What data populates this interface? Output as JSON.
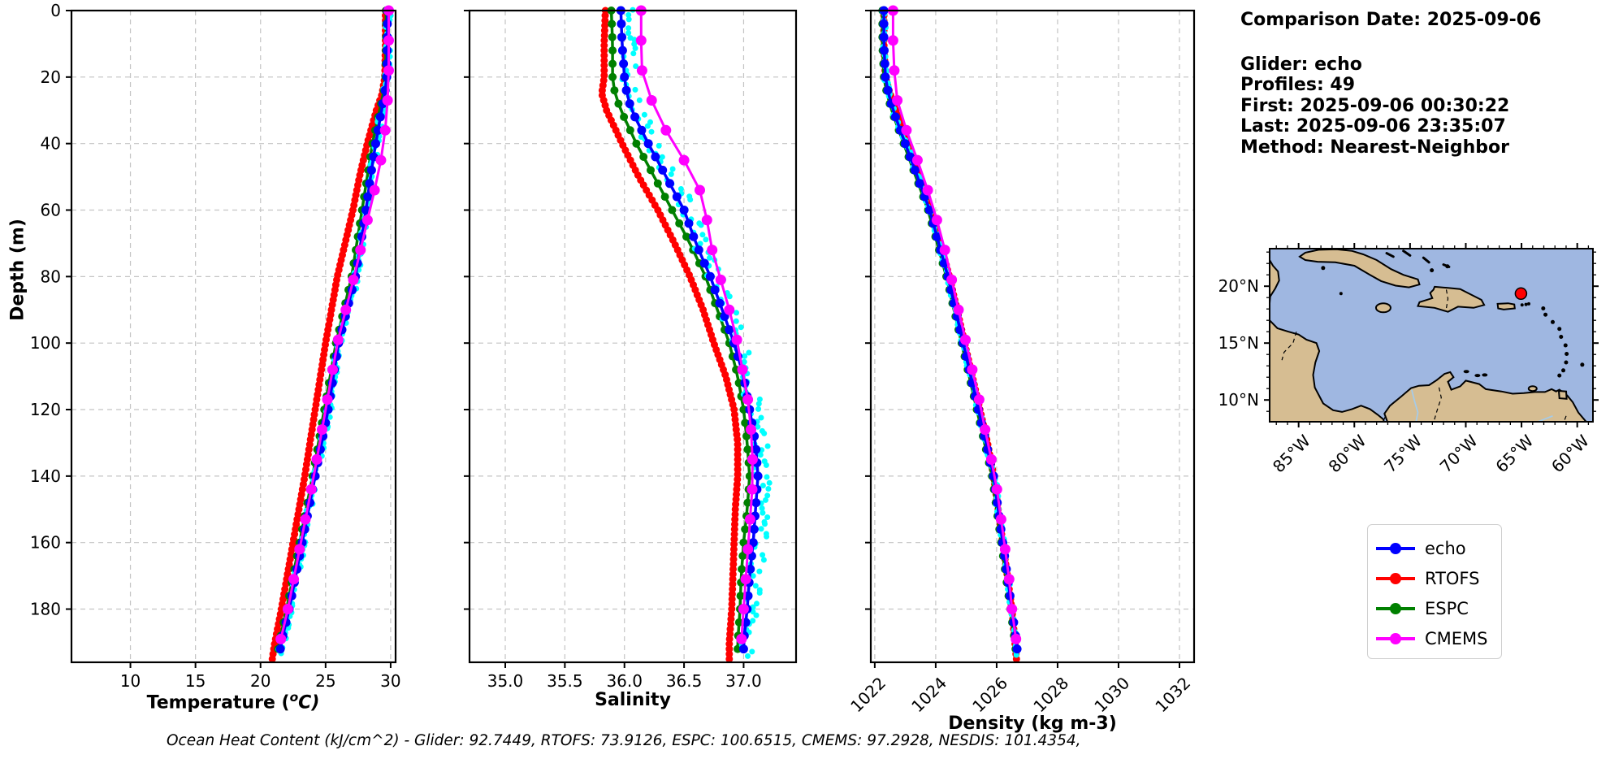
{
  "info_panel": {
    "comparison_date": "Comparison Date: 2025-09-06",
    "glider": "Glider: echo",
    "profiles": "Profiles: 49",
    "first": "First: 2025-09-06 00:30:22",
    "last": "Last: 2025-09-06 23:35:07",
    "method": "Method: Nearest-Neighbor"
  },
  "footer": {
    "ohc_line": "Ocean Heat Content (kJ/cm^2) - Glider: 92.7449,  RTOFS: 73.9126,  ESPC: 100.6515,  CMEMS: 97.2928,  NESDIS: 101.4354,"
  },
  "axis_labels": {
    "depth": "Depth (m)",
    "temp_prefix": "Temperature (",
    "temp_sup": "o",
    "temp_suffix": "C)",
    "salinity": "Salinity",
    "density": "Density (kg m-3)"
  },
  "legend": {
    "items": [
      {
        "label": "echo",
        "color": "#0000ff"
      },
      {
        "label": "RTOFS",
        "color": "#ff0000"
      },
      {
        "label": "ESPC",
        "color": "#008000"
      },
      {
        "label": "CMEMS",
        "color": "#ff00ff"
      }
    ]
  },
  "colors": {
    "glider_scatter": "#00ffff",
    "grid": "#c4c4c4",
    "spine": "#000000",
    "map_ocean": "#9fb7e1",
    "map_land": "#d6bd92",
    "map_coast": "#000000",
    "map_marker": "#ff0000"
  },
  "map": {
    "lat_labels": [
      "20°N",
      "15°N",
      "10°N"
    ],
    "lat_values": [
      20,
      15,
      10
    ],
    "lon_labels": [
      "85°W",
      "80°W",
      "75°W",
      "70°W",
      "65°W",
      "60°W"
    ],
    "lon_values": [
      85,
      80,
      75,
      70,
      65,
      60
    ],
    "marker": {
      "lon_w": 65.05,
      "lat_n": 19.35
    }
  },
  "depth_axis": {
    "ticks": [
      0,
      20,
      40,
      60,
      80,
      100,
      120,
      140,
      160,
      180
    ],
    "tick_labels": [
      "0",
      "20",
      "40",
      "60",
      "80",
      "100",
      "120",
      "140",
      "160",
      "180"
    ],
    "max": 196
  },
  "chart_data": [
    {
      "type": "line",
      "xlabel": "Temperature (°C)",
      "ylabel": "Depth (m)",
      "xlim": [
        5.47,
        30.38
      ],
      "ylim": [
        196,
        0
      ],
      "xticks": [
        10,
        15,
        20,
        25,
        30
      ],
      "xtick_labels": [
        "10",
        "15",
        "20",
        "25",
        "30"
      ],
      "xtick_rotation": 0,
      "grid": true,
      "depths": [
        0,
        10,
        20,
        25,
        30,
        40,
        50,
        60,
        70,
        80,
        90,
        100,
        110,
        120,
        130,
        140,
        150,
        160,
        170,
        180,
        190,
        195
      ],
      "series": [
        {
          "name": "echo",
          "color": "#0000ff",
          "values": [
            29.75,
            29.75,
            29.7,
            29.55,
            29.3,
            28.85,
            28.45,
            28.1,
            27.7,
            27.3,
            26.65,
            26.0,
            25.6,
            25.2,
            24.7,
            24.2,
            23.7,
            23.2,
            22.7,
            22.2,
            21.6,
            21.4
          ]
        },
        {
          "name": "RTOFS",
          "color": "#ff0000",
          "values": [
            29.6,
            29.6,
            29.55,
            29.35,
            28.9,
            28.2,
            27.6,
            27.1,
            26.5,
            25.9,
            25.45,
            25.0,
            24.6,
            24.2,
            23.8,
            23.4,
            22.95,
            22.5,
            22.05,
            21.6,
            21.1,
            20.9
          ]
        },
        {
          "name": "ESPC",
          "color": "#008000",
          "values": [
            29.65,
            29.65,
            29.6,
            29.45,
            29.15,
            28.6,
            28.2,
            27.8,
            27.4,
            27.0,
            26.4,
            25.8,
            25.35,
            24.9,
            24.45,
            24.0,
            23.5,
            23.0,
            22.5,
            22.0,
            21.45,
            21.2
          ]
        },
        {
          "name": "CMEMS",
          "color": "#ff00ff",
          "values": [
            29.85,
            29.85,
            29.85,
            29.8,
            29.7,
            29.5,
            29.0,
            28.4,
            27.8,
            27.2,
            26.55,
            25.9,
            25.45,
            25.0,
            24.55,
            24.1,
            23.6,
            23.1,
            22.6,
            22.1,
            21.5,
            21.3
          ]
        }
      ]
    },
    {
      "type": "line",
      "xlabel": "Salinity",
      "ylabel": "Depth (m)",
      "xlim": [
        34.7,
        37.44
      ],
      "ylim": [
        196,
        0
      ],
      "xticks": [
        35.0,
        35.5,
        36.0,
        36.5,
        37.0
      ],
      "xtick_labels": [
        "35.0",
        "35.5",
        "36.0",
        "36.5",
        "37.0"
      ],
      "xtick_rotation": 0,
      "grid": true,
      "depths": [
        0,
        10,
        20,
        25,
        30,
        40,
        50,
        60,
        70,
        80,
        90,
        100,
        110,
        120,
        130,
        140,
        150,
        160,
        170,
        180,
        190,
        195
      ],
      "series": [
        {
          "name": "echo",
          "color": "#0000ff",
          "values": [
            35.97,
            35.98,
            36.0,
            36.02,
            36.06,
            36.2,
            36.35,
            36.5,
            36.6,
            36.72,
            36.82,
            36.92,
            37.0,
            37.05,
            37.1,
            37.12,
            37.1,
            37.08,
            37.05,
            37.03,
            37.0,
            37.0
          ]
        },
        {
          "name": "RTOFS",
          "color": "#ff0000",
          "values": [
            35.84,
            35.83,
            35.83,
            35.81,
            35.85,
            35.98,
            36.12,
            36.28,
            36.42,
            36.55,
            36.66,
            36.75,
            36.85,
            36.92,
            36.95,
            36.95,
            36.93,
            36.92,
            36.91,
            36.9,
            36.88,
            36.88
          ]
        },
        {
          "name": "ESPC",
          "color": "#008000",
          "values": [
            35.89,
            35.9,
            35.9,
            35.92,
            35.97,
            36.1,
            36.25,
            36.4,
            36.55,
            36.68,
            36.78,
            36.88,
            36.95,
            37.0,
            37.03,
            37.05,
            37.03,
            37.0,
            36.98,
            36.97,
            36.95,
            36.95
          ]
        },
        {
          "name": "CMEMS",
          "color": "#ff00ff",
          "values": [
            36.14,
            36.14,
            36.15,
            36.2,
            36.27,
            36.4,
            36.6,
            36.68,
            36.72,
            36.8,
            36.88,
            36.95,
            37.0,
            37.05,
            37.07,
            37.08,
            37.06,
            37.04,
            37.02,
            37.0,
            36.98,
            36.98
          ]
        }
      ]
    },
    {
      "type": "line",
      "xlabel": "Density (kg m-3)",
      "ylabel": "Depth (m)",
      "xlim": [
        1021.87,
        1032.48
      ],
      "ylim": [
        196,
        0
      ],
      "xticks": [
        1022,
        1024,
        1026,
        1028,
        1030,
        1032
      ],
      "xtick_labels": [
        "1022",
        "1024",
        "1026",
        "1028",
        "1030",
        "1032"
      ],
      "xtick_rotation": 45,
      "grid": true,
      "depths": [
        0,
        10,
        20,
        25,
        30,
        40,
        50,
        60,
        70,
        80,
        90,
        100,
        110,
        120,
        130,
        140,
        150,
        160,
        170,
        180,
        190,
        195
      ],
      "series": [
        {
          "name": "echo",
          "color": "#0000ff",
          "values": [
            1022.3,
            1022.3,
            1022.35,
            1022.45,
            1022.6,
            1023.0,
            1023.4,
            1023.8,
            1024.1,
            1024.4,
            1024.65,
            1024.9,
            1025.15,
            1025.4,
            1025.65,
            1025.9,
            1026.05,
            1026.2,
            1026.35,
            1026.5,
            1026.65,
            1026.7
          ]
        },
        {
          "name": "RTOFS",
          "color": "#ff0000",
          "values": [
            1022.3,
            1022.3,
            1022.35,
            1022.5,
            1022.7,
            1023.1,
            1023.5,
            1023.85,
            1024.15,
            1024.45,
            1024.7,
            1024.95,
            1025.2,
            1025.45,
            1025.7,
            1025.9,
            1026.05,
            1026.2,
            1026.35,
            1026.5,
            1026.6,
            1026.65
          ]
        },
        {
          "name": "ESPC",
          "color": "#008000",
          "values": [
            1022.25,
            1022.25,
            1022.3,
            1022.4,
            1022.55,
            1022.95,
            1023.35,
            1023.75,
            1024.05,
            1024.35,
            1024.6,
            1024.85,
            1025.1,
            1025.35,
            1025.6,
            1025.85,
            1026.0,
            1026.15,
            1026.3,
            1026.45,
            1026.6,
            1026.65
          ]
        },
        {
          "name": "CMEMS",
          "color": "#ff00ff",
          "values": [
            1022.6,
            1022.6,
            1022.65,
            1022.7,
            1022.8,
            1023.2,
            1023.6,
            1023.95,
            1024.25,
            1024.5,
            1024.75,
            1025.0,
            1025.25,
            1025.5,
            1025.7,
            1025.95,
            1026.1,
            1026.25,
            1026.4,
            1026.5,
            1026.65,
            1026.7
          ]
        }
      ]
    }
  ]
}
